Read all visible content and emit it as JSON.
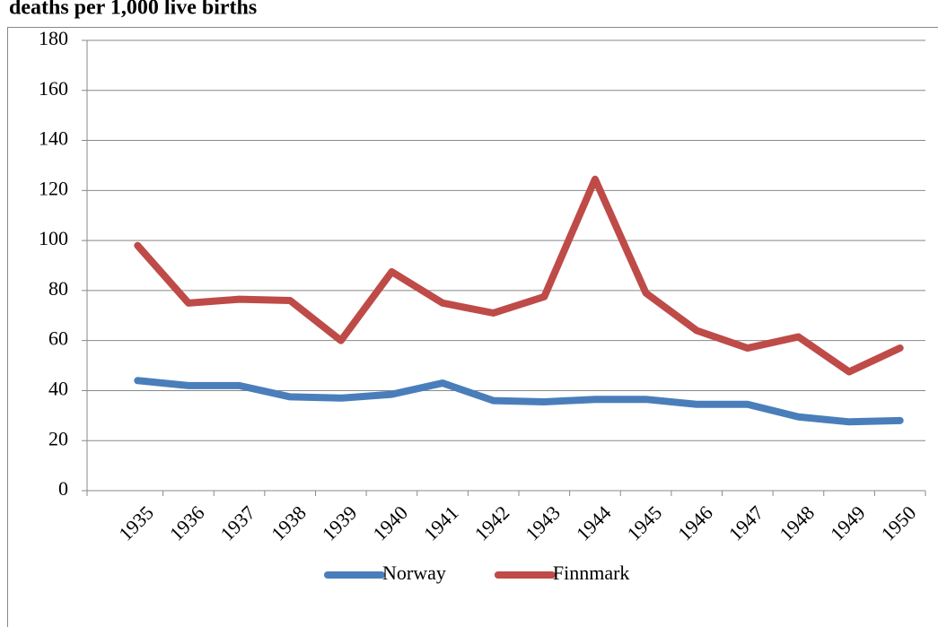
{
  "chart_data": {
    "type": "line",
    "title": "deaths per 1,000 live births",
    "categories": [
      "1935",
      "1936",
      "1937",
      "1938",
      "1939",
      "1940",
      "1941",
      "1942",
      "1943",
      "1944",
      "1945",
      "1946",
      "1947",
      "1948",
      "1949",
      "1950"
    ],
    "series": [
      {
        "name": "Norway",
        "color": "#4a7ebb",
        "values": [
          44,
          42,
          42,
          37.5,
          37,
          38.5,
          43,
          36,
          35.5,
          36.5,
          36.5,
          34.5,
          34.5,
          29.5,
          27.5,
          28
        ]
      },
      {
        "name": "Finnmark",
        "color": "#be4b48",
        "values": [
          98,
          75,
          76.5,
          76,
          60,
          87.5,
          75,
          71,
          77.5,
          124.5,
          79,
          64,
          57,
          61.5,
          47.5,
          57
        ]
      }
    ],
    "ylim": [
      0,
      180
    ],
    "yticks": [
      0,
      20,
      40,
      60,
      80,
      100,
      120,
      140,
      160,
      180
    ],
    "grid": true,
    "legend": "bottom"
  }
}
